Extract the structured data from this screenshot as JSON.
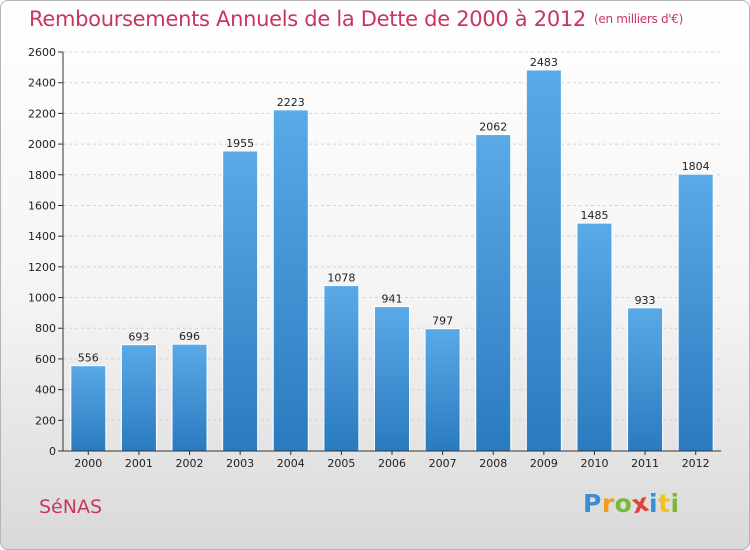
{
  "title": "Remboursements Annuels de la Dette de 2000 à 2012",
  "unit": "(en milliers d'€)",
  "commune": "SéNAS",
  "logo": {
    "letters": [
      "P",
      "r",
      "o",
      "x",
      "i",
      "t",
      "i"
    ],
    "colors": [
      "#3b8ed6",
      "#f29b1d",
      "#79b93a",
      "#e0413a",
      "#3b8ed6",
      "#f2c21d",
      "#79b93a"
    ]
  },
  "chart_data": {
    "type": "bar",
    "categories": [
      "2000",
      "2001",
      "2002",
      "2003",
      "2004",
      "2005",
      "2006",
      "2007",
      "2008",
      "2009",
      "2010",
      "2011",
      "2012"
    ],
    "values": [
      556,
      693,
      696,
      1955,
      2223,
      1078,
      941,
      797,
      2062,
      2483,
      1485,
      933,
      1804
    ],
    "ylim": [
      0,
      2600
    ],
    "yticks": [
      0,
      200,
      400,
      600,
      800,
      1000,
      1200,
      1400,
      1600,
      1800,
      2000,
      2200,
      2400,
      2600
    ],
    "grid": true,
    "bar_color": "#3d8fd6"
  }
}
